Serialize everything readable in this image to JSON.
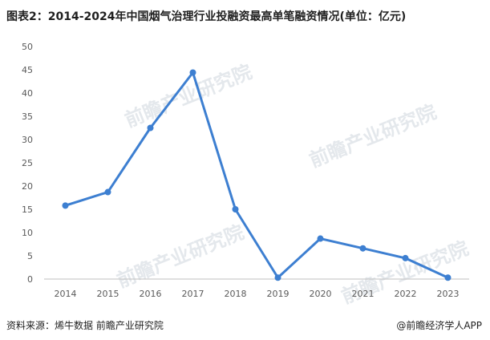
{
  "title": "图表2：2014-2024年中国烟气治理行业投融资最高单笔融资情况(单位：亿元)",
  "source": "资料来源：烯牛数据 前瞻产业研究院",
  "credit": "@前瞻经济学人APP",
  "watermark": "前瞻产业研究院",
  "chart_data": {
    "type": "line",
    "title": "",
    "xlabel": "",
    "ylabel": "",
    "categories": [
      "2014",
      "2015",
      "2016",
      "2017",
      "2018",
      "2019",
      "2020",
      "2021",
      "2022",
      "2023"
    ],
    "series": [
      {
        "values": [
          15.8,
          18.7,
          32.5,
          44.4,
          15.0,
          0.3,
          8.7,
          6.6,
          4.5,
          0.3
        ],
        "color": "#3d7fd1"
      }
    ],
    "ylim": [
      0,
      50
    ],
    "yticks": [
      0,
      5,
      10,
      15,
      20,
      25,
      30,
      35,
      40,
      45,
      50
    ],
    "grid": false,
    "legend": "none"
  }
}
